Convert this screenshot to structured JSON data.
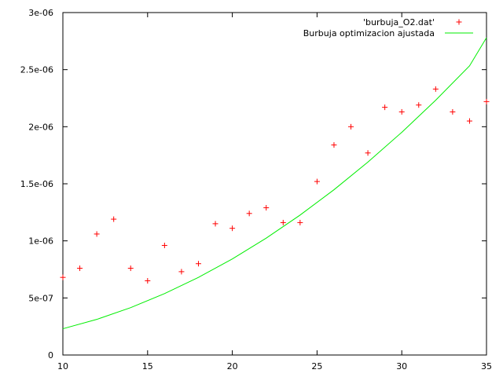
{
  "chart_data": {
    "type": "scatter",
    "title": "",
    "xlabel": "",
    "ylabel": "",
    "xlim": [
      10,
      35
    ],
    "ylim": [
      0,
      3e-06
    ],
    "grid": false,
    "legend_position": "top-right",
    "x_ticks": [
      10,
      15,
      20,
      25,
      30,
      35
    ],
    "x_tick_labels": [
      "10",
      "15",
      "20",
      "25",
      "30",
      "35"
    ],
    "y_ticks": [
      0,
      5e-07,
      1e-06,
      1.5e-06,
      2e-06,
      2.5e-06,
      3e-06
    ],
    "y_tick_labels": [
      "0",
      "5e-07",
      "1e-06",
      "1.5e-06",
      "2e-06",
      "2.5e-06",
      "3e-06"
    ],
    "series": [
      {
        "name": "'burbuja_O2.dat'",
        "kind": "points",
        "marker": "plus",
        "color": "#ff0000",
        "x": [
          10,
          11,
          12,
          13,
          14,
          15,
          16,
          17,
          18,
          19,
          20,
          21,
          22,
          23,
          24,
          25,
          26,
          27,
          28,
          29,
          30,
          31,
          32,
          33,
          34,
          35
        ],
        "y": [
          6.8e-07,
          7.6e-07,
          1.06e-06,
          1.19e-06,
          7.6e-07,
          6.5e-07,
          9.6e-07,
          7.3e-07,
          8e-07,
          1.15e-06,
          1.11e-06,
          1.24e-06,
          1.29e-06,
          1.16e-06,
          1.16e-06,
          1.52e-06,
          1.84e-06,
          2e-06,
          1.77e-06,
          2.17e-06,
          2.13e-06,
          2.19e-06,
          2.33e-06,
          2.13e-06,
          2.05e-06,
          2.22e-06
        ]
      },
      {
        "name": "Burbuja optimizacion ajustada",
        "kind": "line",
        "color": "#00ee00",
        "x": [
          10,
          12,
          14,
          16,
          18,
          20,
          22,
          24,
          26,
          28,
          30,
          32,
          34,
          35
        ],
        "y": [
          2.3e-07,
          3.12e-07,
          4.15e-07,
          5.38e-07,
          6.8e-07,
          8.42e-07,
          1.024e-06,
          1.226e-06,
          1.448e-06,
          1.69e-06,
          1.951e-06,
          2.232e-06,
          2.533e-06,
          2.78e-06
        ]
      }
    ]
  }
}
